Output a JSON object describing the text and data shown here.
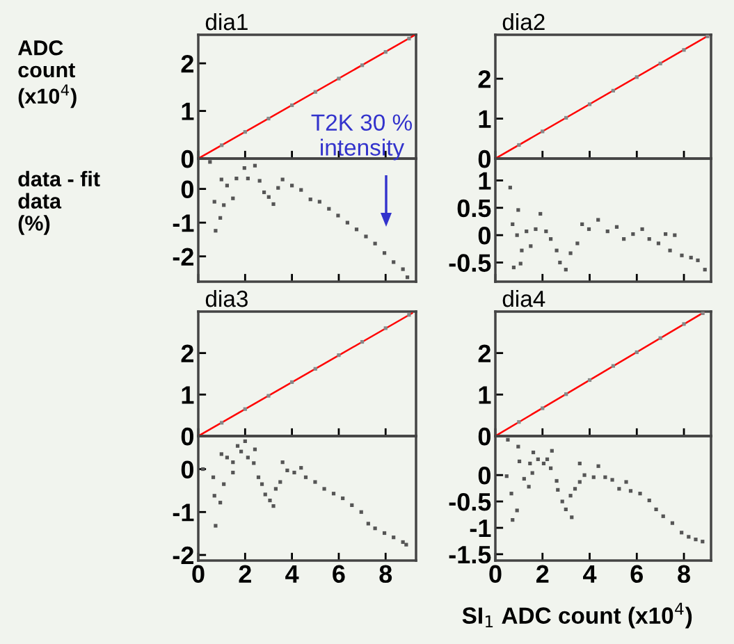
{
  "chart_data": [
    {
      "type": "scatter",
      "title": "dia1",
      "ylabel": "ADC\ncount\n(x10$^{4}$)",
      "xlim": [
        0,
        9.3
      ],
      "xticks": [
        0,
        2,
        4,
        6,
        8
      ],
      "ylim": [
        0,
        2.6
      ],
      "yticks": [
        0,
        1,
        2
      ],
      "tick_labels": "y",
      "series": [
        {
          "type": "scatter",
          "marker": "square",
          "color": "#888888",
          "x": [
            1,
            2,
            3,
            4,
            5,
            6,
            7,
            8,
            9
          ],
          "values": [
            0.28,
            0.56,
            0.84,
            1.12,
            1.4,
            1.68,
            1.96,
            2.24,
            2.52
          ]
        },
        {
          "type": "line",
          "color": "#ff0000",
          "x": [
            0,
            9.2
          ],
          "values": [
            0,
            2.58
          ]
        }
      ]
    },
    {
      "type": "scatter",
      "ylabel": "data - fit\ndata\n(%)",
      "xlim": [
        0,
        9.3
      ],
      "xticks": [
        0,
        2,
        4,
        6,
        8
      ],
      "ylim": [
        -2.75,
        0.9
      ],
      "yticks": [
        -2,
        -1,
        0
      ],
      "tick_labels": "y",
      "marker": "square",
      "annotations": [
        "T2K 30 %\nintensity"
      ],
      "series": [
        {
          "color": "#555555",
          "x": [
            0.5,
            0.74,
            0.94,
            0.69,
            1.09,
            0.99,
            1.23,
            1.48,
            1.63,
            1.97,
            2.12,
            2.42,
            2.62,
            2.81,
            3.01,
            3.21,
            3.41,
            3.6,
            4.0,
            4.39,
            4.79,
            5.18,
            5.58,
            5.97,
            6.37,
            6.76,
            7.16,
            7.55,
            7.95,
            8.34,
            8.74,
            8.93
          ],
          "values": [
            0.8,
            -1.24,
            -0.86,
            -0.38,
            -0.48,
            0.28,
            0.1,
            -0.28,
            0.31,
            0.62,
            0.31,
            0.69,
            0.24,
            -0.1,
            -0.24,
            -0.45,
            0.03,
            0.28,
            0.1,
            -0.03,
            -0.31,
            -0.38,
            -0.59,
            -0.79,
            -1.0,
            -1.2,
            -1.41,
            -1.62,
            -1.9,
            -2.17,
            -2.38,
            -2.62
          ]
        }
      ]
    },
    {
      "type": "scatter",
      "title": "dia2",
      "xlim": [
        0,
        9.15
      ],
      "xticks": [
        0,
        2,
        4,
        6,
        8
      ],
      "ylim": [
        0,
        3.1
      ],
      "yticks": [
        0,
        1,
        2
      ],
      "tick_labels": "y",
      "series": [
        {
          "type": "scatter",
          "marker": "square",
          "color": "#888888",
          "x": [
            1,
            2,
            3,
            4,
            5,
            6,
            7,
            8,
            9
          ],
          "values": [
            0.34,
            0.68,
            1.02,
            1.36,
            1.7,
            2.04,
            2.38,
            2.72,
            3.06
          ]
        },
        {
          "type": "line",
          "color": "#ff0000",
          "x": [
            0,
            9.04
          ],
          "values": [
            0,
            3.08
          ]
        }
      ]
    },
    {
      "type": "scatter",
      "xlim": [
        0,
        9.15
      ],
      "xticks": [
        0,
        2,
        4,
        6,
        8
      ],
      "ylim": [
        -0.85,
        1.4
      ],
      "yticks": [
        -0.5,
        0,
        0.5,
        1
      ],
      "tick_labels": "y",
      "marker": "square",
      "series": [
        {
          "color": "#555555",
          "x": [
            0.63,
            0.97,
            0.73,
            0.92,
            1.12,
            0.78,
            1.07,
            1.32,
            1.5,
            1.71,
            1.91,
            2.15,
            2.35,
            2.6,
            2.74,
            2.99,
            3.19,
            3.48,
            3.68,
            3.97,
            4.36,
            4.76,
            5.15,
            5.45,
            5.84,
            6.23,
            6.53,
            6.92,
            7.22,
            7.41,
            7.61,
            7.91,
            8.3,
            8.59,
            8.89
          ],
          "values": [
            0.87,
            0.46,
            0.2,
            0,
            -0.28,
            -0.59,
            -0.52,
            0.07,
            -0.2,
            0.11,
            0.39,
            0.07,
            -0.07,
            -0.28,
            -0.5,
            -0.63,
            -0.33,
            -0.15,
            0.2,
            0.11,
            0.28,
            0.07,
            0.15,
            -0.07,
            0.02,
            0.11,
            -0.07,
            -0.15,
            0.02,
            -0.28,
            0,
            -0.37,
            -0.41,
            -0.46,
            -0.63
          ]
        }
      ]
    },
    {
      "type": "scatter",
      "title": "dia3",
      "xlim": [
        0,
        9.3
      ],
      "xticks": [
        0,
        2,
        4,
        6,
        8
      ],
      "ylim": [
        0,
        3.0
      ],
      "yticks": [
        0,
        1,
        2
      ],
      "tick_labels": "y",
      "series": [
        {
          "type": "scatter",
          "marker": "square",
          "color": "#888888",
          "x": [
            1,
            2,
            3,
            4,
            5,
            6,
            7,
            8,
            9
          ],
          "values": [
            0.32,
            0.65,
            0.97,
            1.3,
            1.62,
            1.95,
            2.27,
            2.6,
            2.92
          ]
        },
        {
          "type": "line",
          "color": "#ff0000",
          "x": [
            0,
            9.13
          ],
          "values": [
            0,
            2.96
          ]
        }
      ]
    },
    {
      "type": "scatter",
      "xlim": [
        0,
        9.3
      ],
      "xticks": [
        0,
        2,
        4,
        6,
        8
      ],
      "ylim": [
        -2.13,
        0.77
      ],
      "yticks": [
        -2,
        -1,
        0
      ],
      "marker": "square",
      "series": [
        {
          "color": "#555555",
          "x": [
            0.2,
            0.64,
            0.69,
            0.94,
            0.74,
            0.99,
            1.09,
            1.23,
            1.48,
            1.48,
            1.68,
            1.83,
            2.0,
            2.12,
            2.42,
            2.37,
            2.57,
            2.72,
            2.86,
            3.06,
            3.21,
            3.31,
            3.5,
            3.6,
            3.8,
            4.1,
            4.39,
            4.59,
            4.99,
            5.38,
            5.78,
            6.17,
            6.56,
            6.96,
            7.26,
            7.55,
            7.95,
            8.34,
            8.74,
            8.88
          ],
          "values": [
            0,
            -0.19,
            -0.62,
            -0.78,
            -1.32,
            0.35,
            -0.35,
            0.27,
            0.16,
            -0.08,
            0.54,
            0.41,
            0.65,
            0.27,
            0.46,
            0.14,
            -0.19,
            -0.35,
            -0.59,
            -0.73,
            -0.86,
            -0.46,
            -0.3,
            0.16,
            -0.03,
            -0.08,
            0.03,
            -0.19,
            -0.3,
            -0.46,
            -0.57,
            -0.68,
            -0.84,
            -1.0,
            -1.27,
            -1.38,
            -1.49,
            -1.59,
            -1.7,
            -1.76
          ]
        }
      ]
    },
    {
      "type": "scatter",
      "title": "dia4",
      "xlim": [
        0,
        9.15
      ],
      "xticks": [
        0,
        2,
        4,
        6,
        8
      ],
      "ylim": [
        0,
        3.0
      ],
      "yticks": [
        0,
        1,
        2
      ],
      "tick_labels": "y",
      "series": [
        {
          "type": "scatter",
          "marker": "square",
          "color": "#888888",
          "x": [
            1,
            2,
            3,
            4,
            5,
            6,
            7,
            8,
            8.8
          ],
          "values": [
            0.34,
            0.67,
            1.01,
            1.35,
            1.69,
            2.02,
            2.36,
            2.7,
            2.96
          ]
        },
        {
          "type": "line",
          "color": "#ff0000",
          "x": [
            0,
            8.84
          ],
          "values": [
            0,
            2.98
          ]
        }
      ]
    },
    {
      "type": "scatter",
      "xlabel": "SI$_{1}$ ADC count (x10$^{4}$)",
      "xlim": [
        0,
        9.15
      ],
      "xticks": [
        0,
        2,
        4,
        6,
        8
      ],
      "ylim": [
        -1.62,
        0.74
      ],
      "yticks": [
        -1.5,
        -1,
        -0.5,
        0
      ],
      "marker": "square",
      "series": [
        {
          "color": "#555555",
          "x": [
            0.48,
            0.53,
            0.68,
            0.73,
            0.92,
            0.97,
            1.02,
            1.22,
            1.42,
            1.47,
            1.61,
            1.57,
            1.81,
            2.05,
            2.2,
            2.4,
            2.35,
            2.6,
            2.65,
            2.84,
            2.99,
            3.24,
            3.19,
            3.38,
            3.58,
            3.58,
            3.78,
            4.17,
            4.37,
            4.66,
            4.96,
            5.25,
            5.55,
            5.74,
            6.14,
            6.53,
            6.82,
            7.12,
            7.51,
            7.9,
            8.2,
            8.5,
            8.79
          ],
          "values": [
            -0.02,
            0.67,
            -0.35,
            -0.85,
            -0.67,
            0.54,
            0.26,
            -0.07,
            -0.22,
            0.22,
            0.43,
            0.04,
            0.3,
            0.22,
            0.3,
            0.46,
            0.13,
            -0.11,
            -0.28,
            -0.5,
            -0.65,
            -0.8,
            -0.39,
            -0.26,
            -0.13,
            0.22,
            0,
            -0.04,
            0.17,
            -0.04,
            -0.09,
            -0.26,
            -0.13,
            -0.3,
            -0.35,
            -0.48,
            -0.65,
            -0.78,
            -0.91,
            -1.09,
            -1.17,
            -1.22,
            -1.26
          ]
        }
      ]
    }
  ]
}
